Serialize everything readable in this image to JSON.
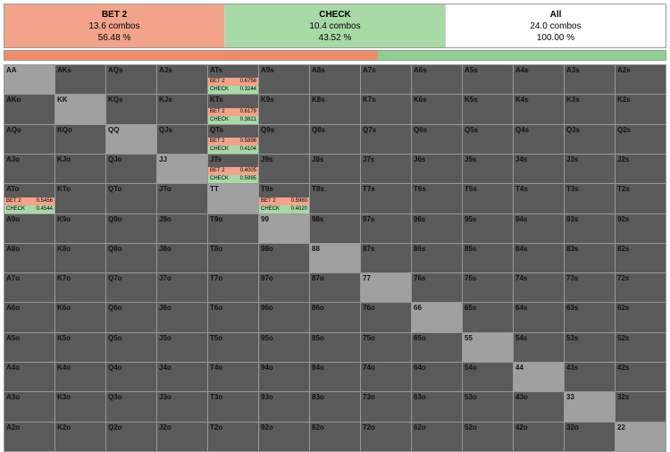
{
  "colors": {
    "bet": "#f2a38a",
    "check": "#a7d9a7",
    "all": "#ffffff",
    "dark": "#5a5a5a",
    "pp": "#a0a0a0",
    "barBet": "#f08c6a",
    "barCheck": "#8fd08f"
  },
  "summary": [
    {
      "key": "bet",
      "title": "BET 2",
      "combos": "13.6 combos",
      "pct": "56.48 %"
    },
    {
      "key": "check",
      "title": "CHECK",
      "combos": "10.4 combos",
      "pct": "43.52 %"
    },
    {
      "key": "all",
      "title": "All",
      "combos": "24.0 combos",
      "pct": "100.00 %"
    }
  ],
  "bar": [
    {
      "color": "barBet",
      "pct": 56.48
    },
    {
      "color": "barCheck",
      "pct": 43.52
    }
  ],
  "ranks": [
    "A",
    "K",
    "Q",
    "J",
    "T",
    "9",
    "8",
    "7",
    "6",
    "5",
    "4",
    "3",
    "2"
  ],
  "mix_labels": {
    "bet": "BET 2",
    "check": "CHECK"
  },
  "mixed": {
    "ATs": {
      "bet": 0.6756,
      "check": 0.3244
    },
    "KTs": {
      "bet": 0.6179,
      "check": 0.3821
    },
    "QTs": {
      "bet": 0.5896,
      "check": 0.4104
    },
    "JTs": {
      "bet": 0.4005,
      "check": 0.5995
    },
    "ATo": {
      "bet": 0.5456,
      "check": 0.4544
    },
    "T9s": {
      "bet": 0.598,
      "check": 0.402
    }
  }
}
